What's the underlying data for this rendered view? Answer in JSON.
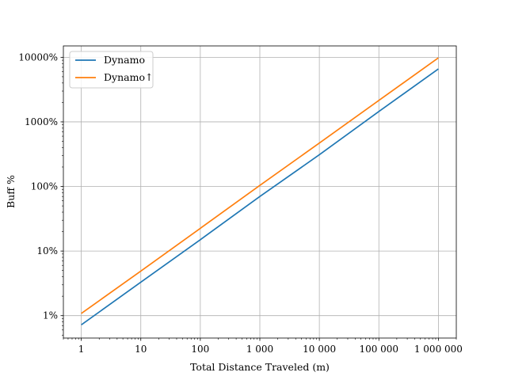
{
  "chart_data": {
    "type": "line",
    "xscale": "log",
    "yscale": "log",
    "xlabel": "Total Distance Traveled (m)",
    "ylabel": "Buff %",
    "xlim": [
      0.5,
      2000000
    ],
    "ylim": [
      0.45,
      15000
    ],
    "grid": true,
    "legend_position": "top-left",
    "x_ticks": [
      1,
      10,
      100,
      1000,
      10000,
      100000,
      1000000
    ],
    "x_tick_labels": [
      "1",
      "10",
      "100",
      "1 000",
      "10 000",
      "100 000",
      "1 000 000"
    ],
    "y_ticks": [
      1,
      10,
      100,
      1000,
      10000
    ],
    "y_tick_labels": [
      "1%",
      "10%",
      "100%",
      "1000%",
      "10000%"
    ],
    "series": [
      {
        "name": "Dynamo",
        "color": "#1f77b4",
        "x": [
          1,
          10,
          100,
          1000,
          10000,
          100000,
          1000000
        ],
        "y": [
          0.72,
          3.3,
          15,
          70,
          310,
          1450,
          6600
        ]
      },
      {
        "name": "Dynamo↑",
        "color": "#ff7f0e",
        "x": [
          1,
          10,
          100,
          1000,
          10000,
          100000,
          1000000
        ],
        "y": [
          1.08,
          4.9,
          22.5,
          104,
          470,
          2150,
          9800
        ]
      }
    ]
  }
}
